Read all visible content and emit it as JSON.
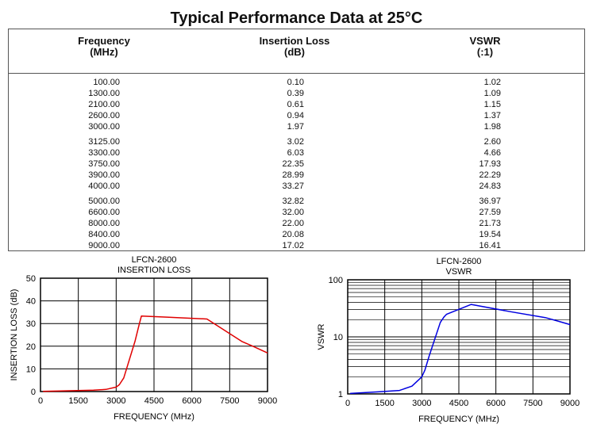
{
  "title": "Typical Performance Data at 25°C",
  "table": {
    "headers": [
      {
        "line1": "Frequency",
        "line2": "(MHz)"
      },
      {
        "line1": "Insertion Loss",
        "line2": "(dB)"
      },
      {
        "line1": "VSWR",
        "line2": "(:1)"
      }
    ],
    "groups": [
      [
        [
          "100.00",
          "0.10",
          "1.02"
        ],
        [
          "1300.00",
          "0.39",
          "1.09"
        ],
        [
          "2100.00",
          "0.61",
          "1.15"
        ],
        [
          "2600.00",
          "0.94",
          "1.37"
        ],
        [
          "3000.00",
          "1.97",
          "1.98"
        ]
      ],
      [
        [
          "3125.00",
          "3.02",
          "2.60"
        ],
        [
          "3300.00",
          "6.03",
          "4.66"
        ],
        [
          "3750.00",
          "22.35",
          "17.93"
        ],
        [
          "3900.00",
          "28.99",
          "22.29"
        ],
        [
          "4000.00",
          "33.27",
          "24.83"
        ]
      ],
      [
        [
          "5000.00",
          "32.82",
          "36.97"
        ],
        [
          "6600.00",
          "32.00",
          "27.59"
        ],
        [
          "8000.00",
          "22.00",
          "21.73"
        ],
        [
          "8400.00",
          "20.08",
          "19.54"
        ],
        [
          "9000.00",
          "17.02",
          "16.41"
        ]
      ]
    ]
  },
  "chart_data": [
    {
      "type": "line",
      "title": "LFCN-2600",
      "subtitle": "INSERTION LOSS",
      "xlabel": "FREQUENCY (MHz)",
      "ylabel": "INSERTION LOSS (dB)",
      "xlim": [
        0,
        9000
      ],
      "ylim": [
        0,
        50
      ],
      "xticks": [
        "0",
        "1500",
        "3000",
        "4500",
        "6000",
        "7500",
        "9000"
      ],
      "yticks": [
        "0",
        "10",
        "20",
        "30",
        "40",
        "50"
      ],
      "color": "#e00000",
      "x": [
        100,
        1300,
        2100,
        2600,
        3000,
        3125,
        3300,
        3750,
        3900,
        4000,
        5000,
        6600,
        8000,
        8400,
        9000
      ],
      "y": [
        0.1,
        0.39,
        0.61,
        0.94,
        1.97,
        3.02,
        6.03,
        22.35,
        28.99,
        33.27,
        32.82,
        32.0,
        22.0,
        20.08,
        17.02
      ]
    },
    {
      "type": "line",
      "title": "LFCN-2600",
      "subtitle": "VSWR",
      "xlabel": "FREQUENCY (MHz)",
      "ylabel": "VSWR",
      "xlim": [
        0,
        9000
      ],
      "ylim": [
        1,
        100
      ],
      "yscale": "log",
      "xticks": [
        "0",
        "1500",
        "3000",
        "4500",
        "6000",
        "7500",
        "9000"
      ],
      "yticks": [
        "1",
        "10",
        "100"
      ],
      "color": "#0000e0",
      "x": [
        100,
        1300,
        2100,
        2600,
        3000,
        3125,
        3300,
        3750,
        3900,
        4000,
        5000,
        6600,
        8000,
        8400,
        9000
      ],
      "y": [
        1.02,
        1.09,
        1.15,
        1.37,
        1.98,
        2.6,
        4.66,
        17.93,
        22.29,
        24.83,
        36.97,
        27.59,
        21.73,
        19.54,
        16.41
      ]
    }
  ]
}
